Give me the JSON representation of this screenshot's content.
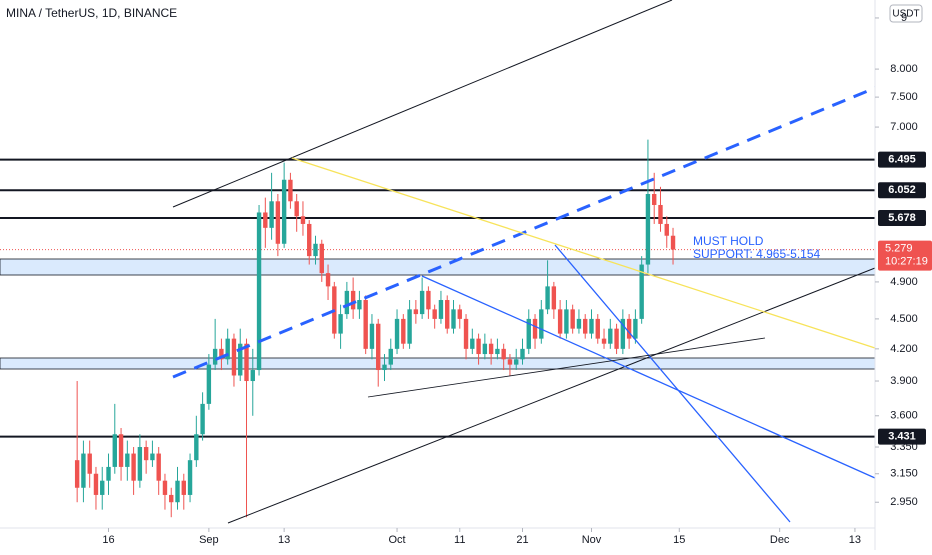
{
  "chart_data": {
    "type": "candlestick",
    "title": "MINA / TetherUS, 1D, BINANCE",
    "currency": "USDT",
    "log_scale": true,
    "up_color": "#26a69a",
    "down_color": "#ef5350",
    "xlim": [
      -33.3,
      106.2
    ],
    "xticks": [
      {
        "value": -16,
        "label": "16"
      },
      {
        "value": 0,
        "label": "Sep"
      },
      {
        "value": 12,
        "label": "13"
      },
      {
        "value": 30,
        "label": "Oct"
      },
      {
        "value": 40,
        "label": "11"
      },
      {
        "value": 50,
        "label": "21"
      },
      {
        "value": 61,
        "label": "Nov"
      },
      {
        "value": 75,
        "label": "15"
      },
      {
        "value": 91,
        "label": "Dec"
      },
      {
        "value": 103,
        "label": "13"
      }
    ],
    "ylim": [
      2.78,
      9.38
    ],
    "yticks": [
      9,
      {
        "value": 8,
        "label": "8.000"
      },
      {
        "value": 7.5,
        "label": "7.500"
      },
      {
        "value": 7,
        "label": "7.000"
      },
      {
        "value": 4.9,
        "label": "4.900"
      },
      {
        "value": 4.5,
        "label": "4.500"
      },
      {
        "value": 4.2,
        "label": "4.200"
      },
      {
        "value": 3.9,
        "label": "3.900"
      },
      {
        "value": 3.6,
        "label": "3.600"
      },
      {
        "value": 3.35,
        "label": "3.350"
      },
      {
        "value": 3.15,
        "label": "3.150"
      },
      {
        "value": 2.95,
        "label": "2.950"
      }
    ],
    "levels": [
      6.495,
      6.052,
      5.678,
      3.431
    ],
    "last_price": 5.279,
    "countdown": "10:27:19",
    "annotation": [
      "MUST HOLD",
      "SUPPORT: 4.965-5.154"
    ],
    "x": [
      -21,
      -20,
      -19,
      -18,
      -17,
      -16,
      -15,
      -14,
      -13,
      -12,
      -11,
      -10,
      -9,
      -8,
      -7,
      -6,
      -5,
      -4,
      -3,
      -2,
      -1,
      0,
      1,
      2,
      3,
      4,
      5,
      6,
      7,
      8,
      9,
      10,
      11,
      12,
      13,
      14,
      15,
      16,
      17,
      18,
      19,
      20,
      21,
      22,
      23,
      24,
      25,
      26,
      27,
      28,
      29,
      30,
      31,
      32,
      33,
      34,
      35,
      36,
      37,
      38,
      39,
      40,
      41,
      42,
      43,
      44,
      45,
      46,
      47,
      48,
      49,
      50,
      51,
      52,
      53,
      54,
      55,
      56,
      57,
      58,
      59,
      60,
      61,
      62,
      63,
      64,
      65,
      66,
      67,
      68,
      69,
      70,
      71,
      72,
      73,
      74
    ],
    "open": [
      3.25,
      3.05,
      3.3,
      3.15,
      3.0,
      3.1,
      3.2,
      3.45,
      3.2,
      3.3,
      3.1,
      3.35,
      3.25,
      3.3,
      3.1,
      3.0,
      2.95,
      3.1,
      3.0,
      3.25,
      3.45,
      3.7,
      4.05,
      4.2,
      4.1,
      4.3,
      3.95,
      4.25,
      3.9,
      4.0,
      5.75,
      5.55,
      5.9,
      5.35,
      6.2,
      5.9,
      5.7,
      5.6,
      5.2,
      5.35,
      5.0,
      4.85,
      4.35,
      4.55,
      4.8,
      4.6,
      4.7,
      4.2,
      4.45,
      4.0,
      4.05,
      4.2,
      4.5,
      4.25,
      4.6,
      4.55,
      4.8,
      4.6,
      4.5,
      4.7,
      4.4,
      4.6,
      4.5,
      4.2,
      4.3,
      4.15,
      4.25,
      4.15,
      4.2,
      4.1,
      4.05,
      4.1,
      4.2,
      4.5,
      4.3,
      4.6,
      4.85,
      4.6,
      4.35,
      4.6,
      4.4,
      4.5,
      4.35,
      4.5,
      4.3,
      4.25,
      4.4,
      4.2,
      4.5,
      4.3,
      4.5,
      5.1,
      6.0,
      5.85,
      5.6,
      5.45
    ],
    "high": [
      3.9,
      3.4,
      3.4,
      3.2,
      3.2,
      3.3,
      3.7,
      3.5,
      3.4,
      3.35,
      3.45,
      3.4,
      3.4,
      3.35,
      3.15,
      3.05,
      3.2,
      3.15,
      3.3,
      3.6,
      3.8,
      4.15,
      4.5,
      4.3,
      4.4,
      4.35,
      4.4,
      4.3,
      4.2,
      5.85,
      5.95,
      6.3,
      6.0,
      6.45,
      6.3,
      6.0,
      5.9,
      5.65,
      5.45,
      5.4,
      5.1,
      4.9,
      4.65,
      4.9,
      4.95,
      4.8,
      4.75,
      4.55,
      4.5,
      4.15,
      4.3,
      4.6,
      4.55,
      4.7,
      4.7,
      4.95,
      4.85,
      4.65,
      4.8,
      4.75,
      4.7,
      4.65,
      4.55,
      4.4,
      4.35,
      4.35,
      4.3,
      4.3,
      4.25,
      4.15,
      4.2,
      4.3,
      4.6,
      4.55,
      4.7,
      5.15,
      4.9,
      4.7,
      4.7,
      4.65,
      4.6,
      4.55,
      4.6,
      4.55,
      4.4,
      4.5,
      4.45,
      4.6,
      4.55,
      4.6,
      5.2,
      6.8,
      6.3,
      6.1,
      5.7,
      5.55
    ],
    "low": [
      2.95,
      2.95,
      3.05,
      2.9,
      2.9,
      3.0,
      3.15,
      3.1,
      3.1,
      3.0,
      3.05,
      3.15,
      3.2,
      3.0,
      2.9,
      2.85,
      2.9,
      2.9,
      2.95,
      3.2,
      3.4,
      3.65,
      4.0,
      4.0,
      4.05,
      3.85,
      3.9,
      2.85,
      3.6,
      3.95,
      5.3,
      5.4,
      5.2,
      5.3,
      5.8,
      5.5,
      5.45,
      5.1,
      5.1,
      4.9,
      4.7,
      4.3,
      4.2,
      4.5,
      4.5,
      4.5,
      4.15,
      4.1,
      3.85,
      3.9,
      4.0,
      4.15,
      4.2,
      4.2,
      4.45,
      4.5,
      4.5,
      4.4,
      4.45,
      4.35,
      4.35,
      4.4,
      4.1,
      4.15,
      4.05,
      4.1,
      4.05,
      4.1,
      4.0,
      3.95,
      4.0,
      4.05,
      4.15,
      4.2,
      4.25,
      4.55,
      4.5,
      4.3,
      4.3,
      4.35,
      4.35,
      4.3,
      4.3,
      4.25,
      4.2,
      4.2,
      4.15,
      4.15,
      4.2,
      4.25,
      4.45,
      5.0,
      5.6,
      5.5,
      5.3,
      5.1
    ],
    "close": [
      3.05,
      3.3,
      3.15,
      3.0,
      3.1,
      3.2,
      3.45,
      3.2,
      3.3,
      3.1,
      3.35,
      3.25,
      3.3,
      3.1,
      3.0,
      2.95,
      3.1,
      3.0,
      3.25,
      3.45,
      3.7,
      4.05,
      4.2,
      4.1,
      4.3,
      3.95,
      4.25,
      3.9,
      4.0,
      5.75,
      5.55,
      5.9,
      5.35,
      6.2,
      5.9,
      5.7,
      5.6,
      5.2,
      5.35,
      5.0,
      4.85,
      4.35,
      4.55,
      4.8,
      4.6,
      4.7,
      4.2,
      4.45,
      4.0,
      4.05,
      4.2,
      4.5,
      4.25,
      4.6,
      4.55,
      4.8,
      4.6,
      4.5,
      4.7,
      4.4,
      4.6,
      4.5,
      4.2,
      4.3,
      4.15,
      4.25,
      4.15,
      4.2,
      4.1,
      4.05,
      4.1,
      4.2,
      4.5,
      4.3,
      4.6,
      4.85,
      4.6,
      4.35,
      4.6,
      4.4,
      4.5,
      4.35,
      4.5,
      4.3,
      4.25,
      4.4,
      4.2,
      4.5,
      4.3,
      4.5,
      5.1,
      6.0,
      5.85,
      5.6,
      5.45,
      5.279
    ]
  }
}
